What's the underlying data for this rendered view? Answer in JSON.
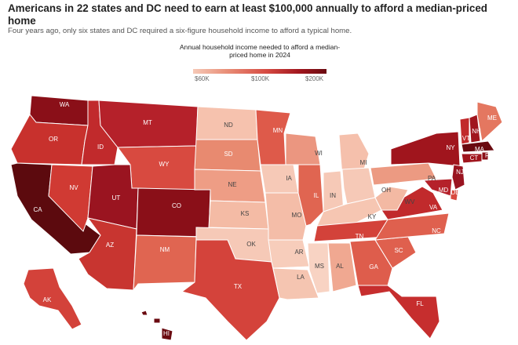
{
  "header": {
    "title": "Americans in 22 states and DC need to earn at least $100,000 annually to afford a median-priced home",
    "subtitle": "Four years ago, only six states and DC required a six-figure household income to afford a typical home."
  },
  "legend": {
    "title": "Annual household income needed to afford a median-priced home in 2024",
    "ticks": [
      "$60K",
      "$100K",
      "$200K"
    ],
    "colors": [
      "#f6c9b7",
      "#e98f78",
      "#d64a42",
      "#a0151d",
      "#6a0a10"
    ]
  },
  "states": [
    {
      "abbr": "WA",
      "color": "#8a0f18"
    },
    {
      "abbr": "OR",
      "color": "#c8312d"
    },
    {
      "abbr": "CA",
      "color": "#5c0a0e"
    },
    {
      "abbr": "NV",
      "color": "#d03a33"
    },
    {
      "abbr": "ID",
      "color": "#c12a2c"
    },
    {
      "abbr": "MT",
      "color": "#b5212a"
    },
    {
      "abbr": "WY",
      "color": "#d84a40"
    },
    {
      "abbr": "UT",
      "color": "#9a1420"
    },
    {
      "abbr": "AZ",
      "color": "#c83530"
    },
    {
      "abbr": "CO",
      "color": "#8a0f18"
    },
    {
      "abbr": "NM",
      "color": "#e06551"
    },
    {
      "abbr": "ND",
      "color": "#f6c2ae"
    },
    {
      "abbr": "SD",
      "color": "#e88a70"
    },
    {
      "abbr": "NE",
      "color": "#ee9d85"
    },
    {
      "abbr": "KS",
      "color": "#f4bba5"
    },
    {
      "abbr": "OK",
      "color": "#f6c9b7"
    },
    {
      "abbr": "TX",
      "color": "#d4433b"
    },
    {
      "abbr": "MN",
      "color": "#de5a4a"
    },
    {
      "abbr": "IA",
      "color": "#f6c9b7"
    },
    {
      "abbr": "MO",
      "color": "#f4bda8"
    },
    {
      "abbr": "AR",
      "color": "#f7cdbb"
    },
    {
      "abbr": "LA",
      "color": "#f5c5b1"
    },
    {
      "abbr": "WI",
      "color": "#eb9680"
    },
    {
      "abbr": "IL",
      "color": "#e06551"
    },
    {
      "abbr": "MI",
      "color": "#f5c0ac"
    },
    {
      "abbr": "IN",
      "color": "#f6c9b7"
    },
    {
      "abbr": "OH",
      "color": "#f6c9b7"
    },
    {
      "abbr": "KY",
      "color": "#f6c6b2"
    },
    {
      "abbr": "TN",
      "color": "#d3423a"
    },
    {
      "abbr": "MS",
      "color": "#f8d3c3"
    },
    {
      "abbr": "AL",
      "color": "#f0a891"
    },
    {
      "abbr": "GA",
      "color": "#de5d4c"
    },
    {
      "abbr": "FL",
      "color": "#c62e2e"
    },
    {
      "abbr": "SC",
      "color": "#df604e"
    },
    {
      "abbr": "NC",
      "color": "#df604e"
    },
    {
      "abbr": "VA",
      "color": "#c12a2c"
    },
    {
      "abbr": "WV",
      "color": "#f3b9a3"
    },
    {
      "abbr": "PA",
      "color": "#ec9a82"
    },
    {
      "abbr": "NY",
      "color": "#a0151d"
    },
    {
      "abbr": "VT",
      "color": "#c12a2c"
    },
    {
      "abbr": "NH",
      "color": "#a0151d"
    },
    {
      "abbr": "ME",
      "color": "#e47760"
    },
    {
      "abbr": "MA",
      "color": "#6a0a10"
    },
    {
      "abbr": "RI",
      "color": "#8a0f18"
    },
    {
      "abbr": "CT",
      "color": "#a0151d"
    },
    {
      "abbr": "NJ",
      "color": "#9a1420"
    },
    {
      "abbr": "DE",
      "color": "#d84a40"
    },
    {
      "abbr": "MD",
      "color": "#b5212a"
    },
    {
      "abbr": "AK",
      "color": "#d3423a"
    },
    {
      "abbr": "HI",
      "color": "#6a0a10"
    }
  ],
  "label_colors": {
    "dark": "#ffffff",
    "light": "#444444"
  }
}
